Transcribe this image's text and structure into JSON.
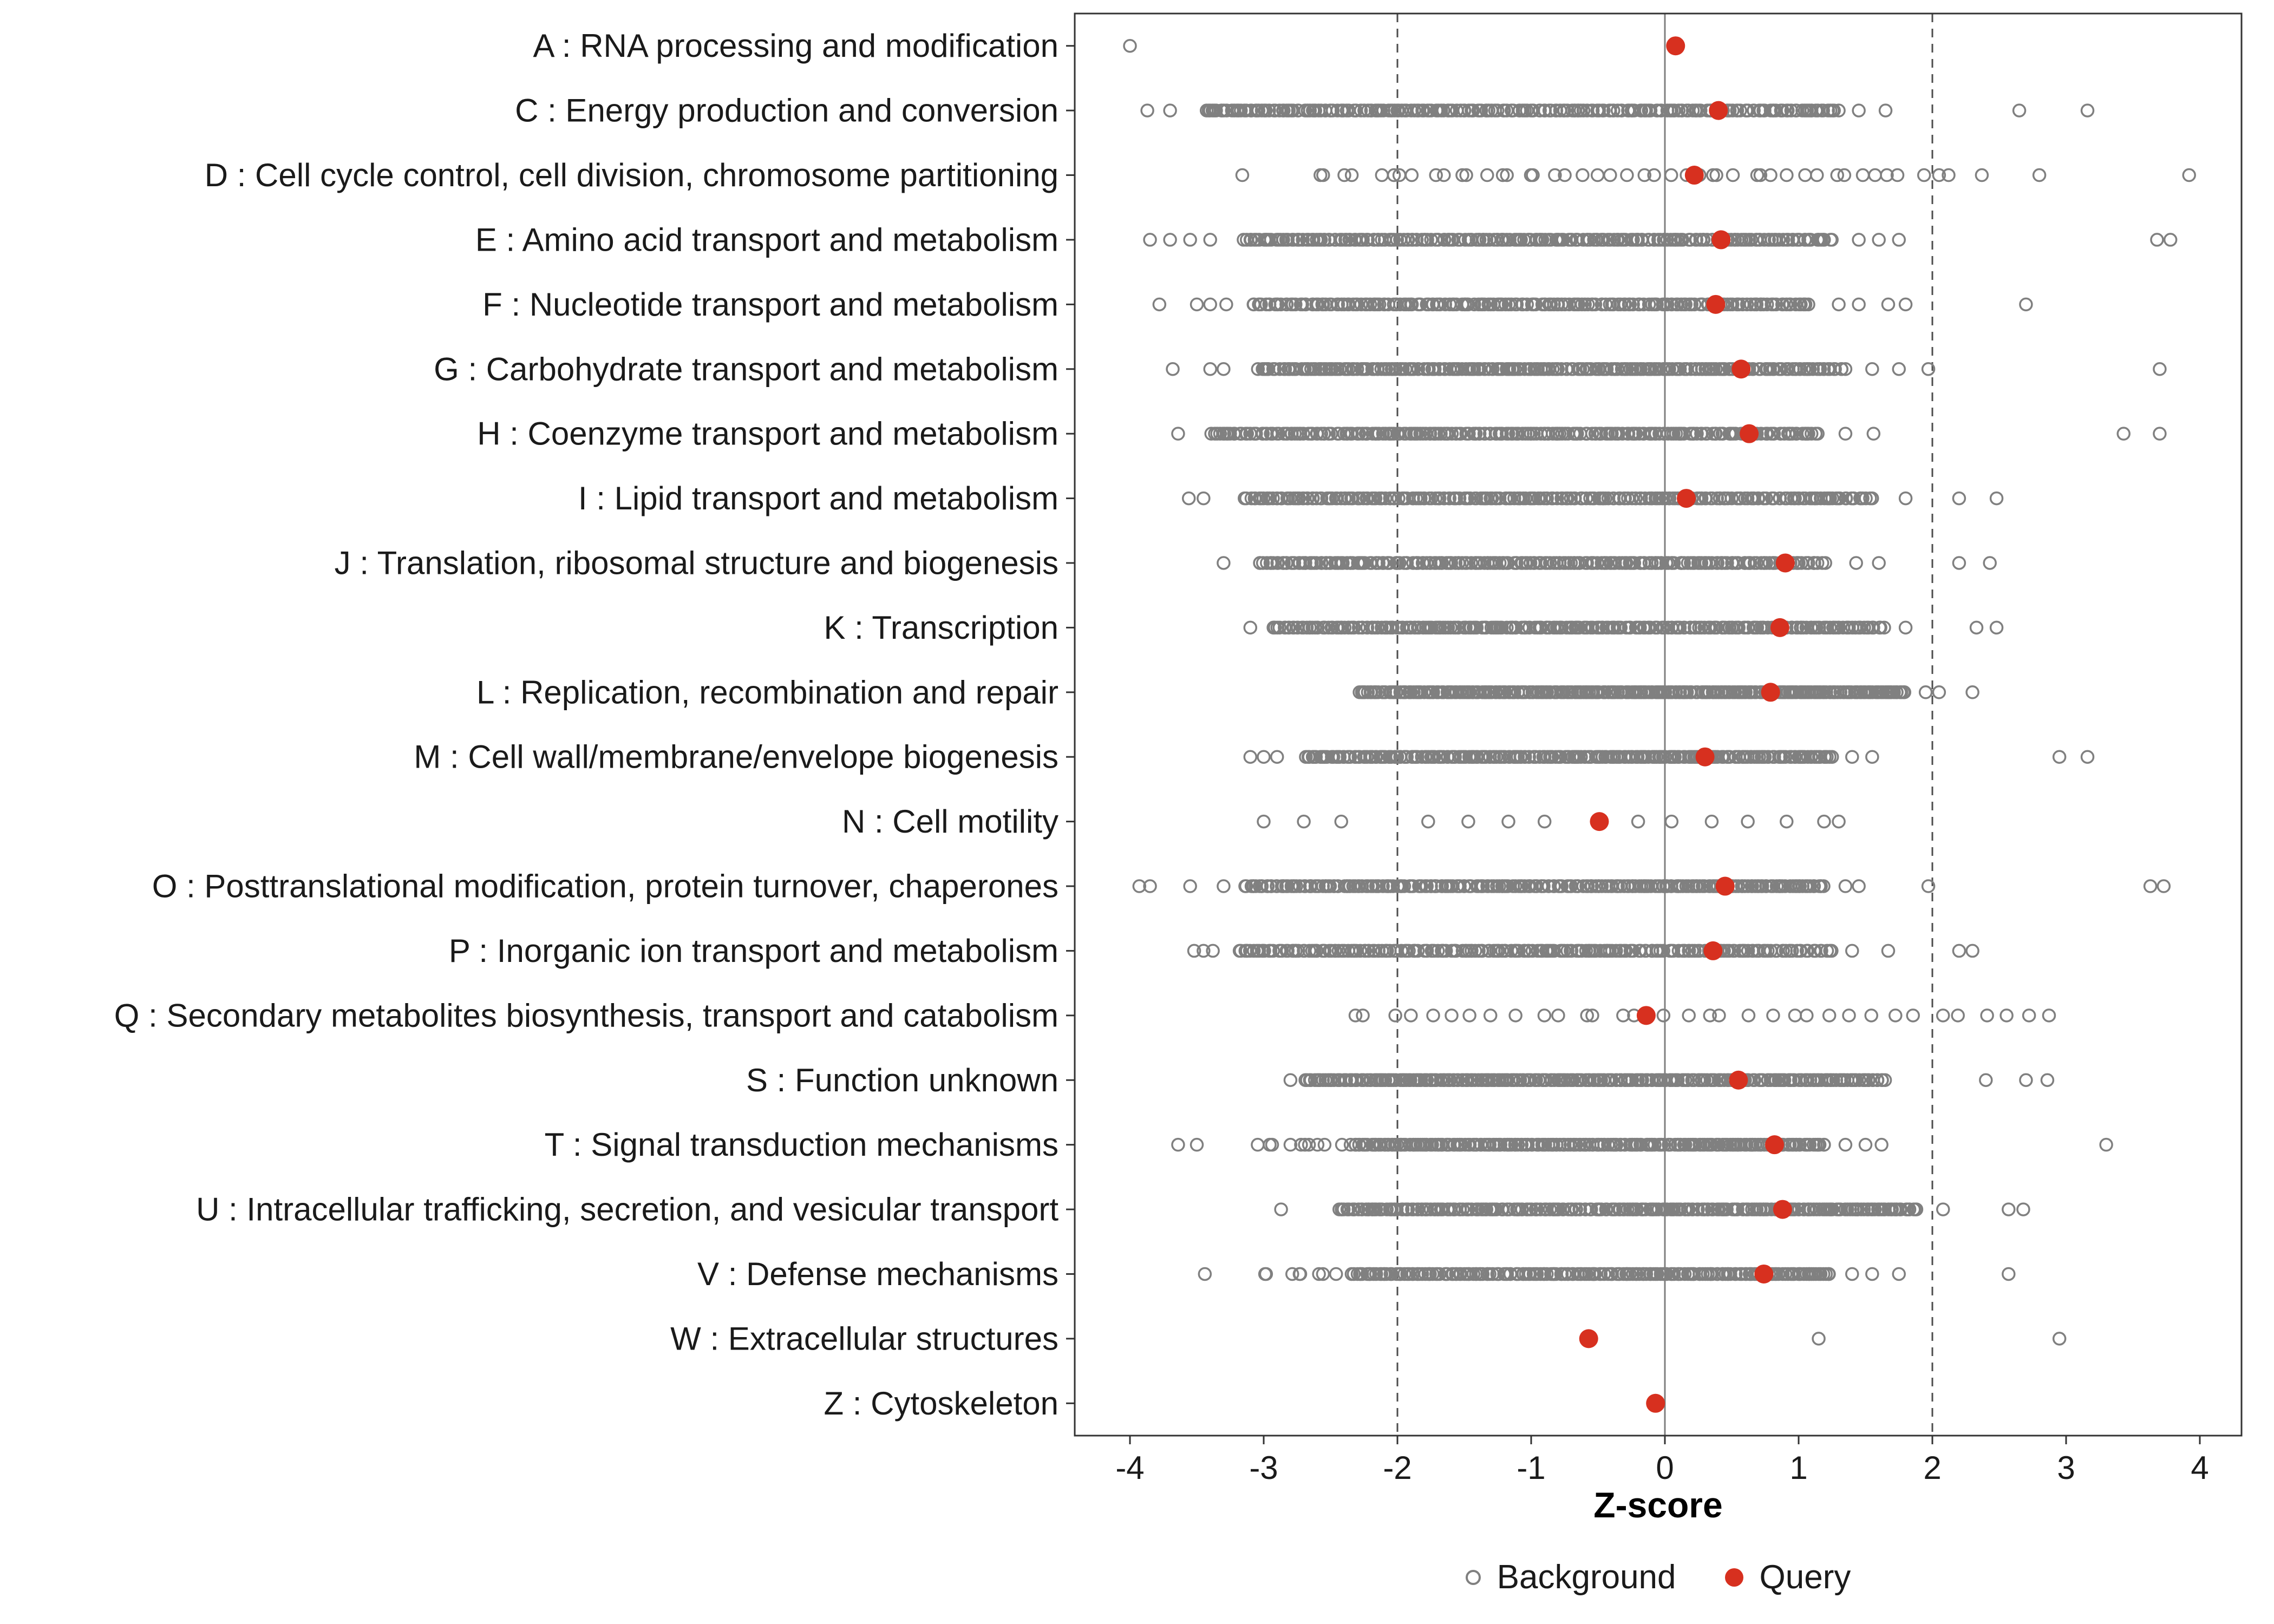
{
  "colors": {
    "query": "#d7301f",
    "background_stroke": "#808080",
    "ref_line_solid": "#7f7f7f",
    "ref_line_dashed": "#4d4d4d",
    "panel_border": "#333333",
    "tick": "#333333",
    "text": "#1a1a1a"
  },
  "chart_data": {
    "type": "scatter",
    "subtype": "horizontal-strip-dotplot",
    "title": "",
    "xlabel": "Z-score",
    "ylabel": "",
    "xlim": [
      -4.4,
      4.3
    ],
    "x_ticks": [
      -4,
      -3,
      -2,
      -1,
      0,
      1,
      2,
      3,
      4
    ],
    "grid": false,
    "reference_lines": {
      "solid_x": [
        0
      ],
      "dashed_x": [
        -2,
        2
      ]
    },
    "legend_position": "bottom",
    "legend": [
      {
        "label": "Background",
        "marker": "open-circle",
        "color": "#808080"
      },
      {
        "label": "Query",
        "marker": "filled-circle",
        "color": "#d7301f"
      }
    ],
    "categories": [
      {
        "code": "A",
        "label": "A : RNA processing and modification",
        "query": 0.08,
        "background_points": [
          -4.0
        ],
        "background_segments": []
      },
      {
        "code": "C",
        "label": "C : Energy production and conversion",
        "query": 0.4,
        "background_points": [
          -3.87,
          -3.7,
          1.45,
          1.65,
          2.65,
          3.16
        ],
        "background_segments": [
          {
            "from": -3.45,
            "to": 1.3,
            "n": 240
          }
        ]
      },
      {
        "code": "D",
        "label": "D : Cell cycle control, cell division, chromosome partitioning",
        "query": 0.22,
        "background_points": [
          -3.16,
          2.37,
          2.8,
          3.92
        ],
        "background_segments": [
          {
            "from": -2.65,
            "to": 2.15,
            "n": 46
          }
        ]
      },
      {
        "code": "E",
        "label": "E : Amino acid transport and metabolism",
        "query": 0.42,
        "background_points": [
          -3.85,
          -3.7,
          -3.55,
          -3.4,
          1.45,
          1.6,
          1.75,
          3.68,
          3.78
        ],
        "background_segments": [
          {
            "from": -3.15,
            "to": 1.25,
            "n": 230
          }
        ]
      },
      {
        "code": "F",
        "label": "F : Nucleotide transport and metabolism",
        "query": 0.38,
        "background_points": [
          -3.78,
          -3.5,
          -3.4,
          -3.28,
          1.3,
          1.45,
          1.67,
          1.8,
          2.7
        ],
        "background_segments": [
          {
            "from": -3.1,
            "to": 1.1,
            "n": 200
          }
        ]
      },
      {
        "code": "G",
        "label": "G : Carbohydrate transport and metabolism",
        "query": 0.57,
        "background_points": [
          -3.68,
          -3.4,
          -3.3,
          1.55,
          1.75,
          1.97,
          3.7
        ],
        "background_segments": [
          {
            "from": -3.05,
            "to": 1.35,
            "n": 250
          }
        ]
      },
      {
        "code": "H",
        "label": "H : Coenzyme transport and metabolism",
        "query": 0.63,
        "background_points": [
          -3.64,
          1.35,
          1.56,
          3.43,
          3.7
        ],
        "background_segments": [
          {
            "from": -3.4,
            "to": 1.15,
            "n": 250
          }
        ]
      },
      {
        "code": "I",
        "label": "I : Lipid transport and metabolism",
        "query": 0.16,
        "background_points": [
          -3.56,
          -3.45,
          1.8,
          2.2,
          2.48
        ],
        "background_segments": [
          {
            "from": -3.15,
            "to": 1.55,
            "n": 250
          }
        ]
      },
      {
        "code": "J",
        "label": "J : Translation, ribosomal structure and biogenesis",
        "query": 0.9,
        "background_points": [
          -3.3,
          1.43,
          1.6,
          2.2,
          2.43
        ],
        "background_segments": [
          {
            "from": -3.05,
            "to": 1.2,
            "n": 230
          }
        ]
      },
      {
        "code": "K",
        "label": "K : Transcription",
        "query": 0.86,
        "background_points": [
          -3.1,
          1.8,
          2.33,
          2.48
        ],
        "background_segments": [
          {
            "from": -2.95,
            "to": 1.65,
            "n": 270
          }
        ]
      },
      {
        "code": "L",
        "label": "L : Replication, recombination and repair",
        "query": 0.79,
        "background_points": [
          1.95,
          2.05,
          2.3
        ],
        "background_segments": [
          {
            "from": -2.3,
            "to": 1.8,
            "n": 290
          }
        ]
      },
      {
        "code": "M",
        "label": "M : Cell wall/membrane/envelope biogenesis",
        "query": 0.3,
        "background_points": [
          -3.1,
          -3.0,
          -2.9,
          1.4,
          1.55,
          2.95,
          3.16
        ],
        "background_segments": [
          {
            "from": -2.7,
            "to": 1.25,
            "n": 250
          }
        ]
      },
      {
        "code": "N",
        "label": "N : Cell motility",
        "query": -0.49,
        "background_points": [
          -3.0,
          -2.7,
          -2.42,
          -1.77,
          -1.47,
          -1.17,
          -0.9,
          -0.2,
          0.05,
          0.35,
          0.62,
          0.91,
          1.19,
          1.3
        ],
        "background_segments": []
      },
      {
        "code": "O",
        "label": "O : Posttranslational modification, protein turnover, chaperones",
        "query": 0.45,
        "background_points": [
          -3.93,
          -3.85,
          -3.55,
          -3.3,
          1.35,
          1.45,
          1.97,
          3.63,
          3.73
        ],
        "background_segments": [
          {
            "from": -3.15,
            "to": 1.2,
            "n": 250
          }
        ]
      },
      {
        "code": "P",
        "label": "P : Inorganic ion transport and metabolism",
        "query": 0.36,
        "background_points": [
          -3.52,
          -3.45,
          -3.38,
          1.4,
          1.67,
          2.2,
          2.3
        ],
        "background_segments": [
          {
            "from": -3.2,
            "to": 1.25,
            "n": 230
          }
        ]
      },
      {
        "code": "Q",
        "label": "Q : Secondary metabolites biosynthesis, transport and catabolism",
        "query": -0.14,
        "background_points": [],
        "background_segments": [
          {
            "from": -2.45,
            "to": 2.9,
            "n": 34
          }
        ]
      },
      {
        "code": "S",
        "label": "S : Function unknown",
        "query": 0.55,
        "background_points": [
          -2.8,
          2.4,
          2.7,
          2.86
        ],
        "background_segments": [
          {
            "from": -2.7,
            "to": 1.65,
            "n": 280
          }
        ]
      },
      {
        "code": "T",
        "label": "T : Signal transduction mechanisms",
        "query": 0.82,
        "background_points": [
          -3.64,
          -3.5,
          1.35,
          1.5,
          1.62,
          3.3
        ],
        "background_segments": [
          {
            "from": -3.05,
            "to": -2.4,
            "n": 10
          },
          {
            "from": -2.35,
            "to": 1.2,
            "n": 230
          }
        ]
      },
      {
        "code": "U",
        "label": "U : Intracellular trafficking, secretion, and vesicular transport",
        "query": 0.88,
        "background_points": [
          -2.87,
          2.08,
          2.57,
          2.68
        ],
        "background_segments": [
          {
            "from": -2.45,
            "to": 1.9,
            "n": 270
          }
        ]
      },
      {
        "code": "V",
        "label": "V : Defense mechanisms",
        "query": 0.74,
        "background_points": [
          -3.44,
          1.4,
          1.55,
          1.75,
          2.57
        ],
        "background_segments": [
          {
            "from": -3.05,
            "to": -2.4,
            "n": 8
          },
          {
            "from": -2.35,
            "to": 1.25,
            "n": 210
          }
        ]
      },
      {
        "code": "W",
        "label": "W : Extracellular structures",
        "query": -0.57,
        "background_points": [
          1.15,
          2.95
        ],
        "background_segments": []
      },
      {
        "code": "Z",
        "label": "Z : Cytoskeleton",
        "query": -0.07,
        "background_points": [],
        "background_segments": []
      }
    ]
  }
}
